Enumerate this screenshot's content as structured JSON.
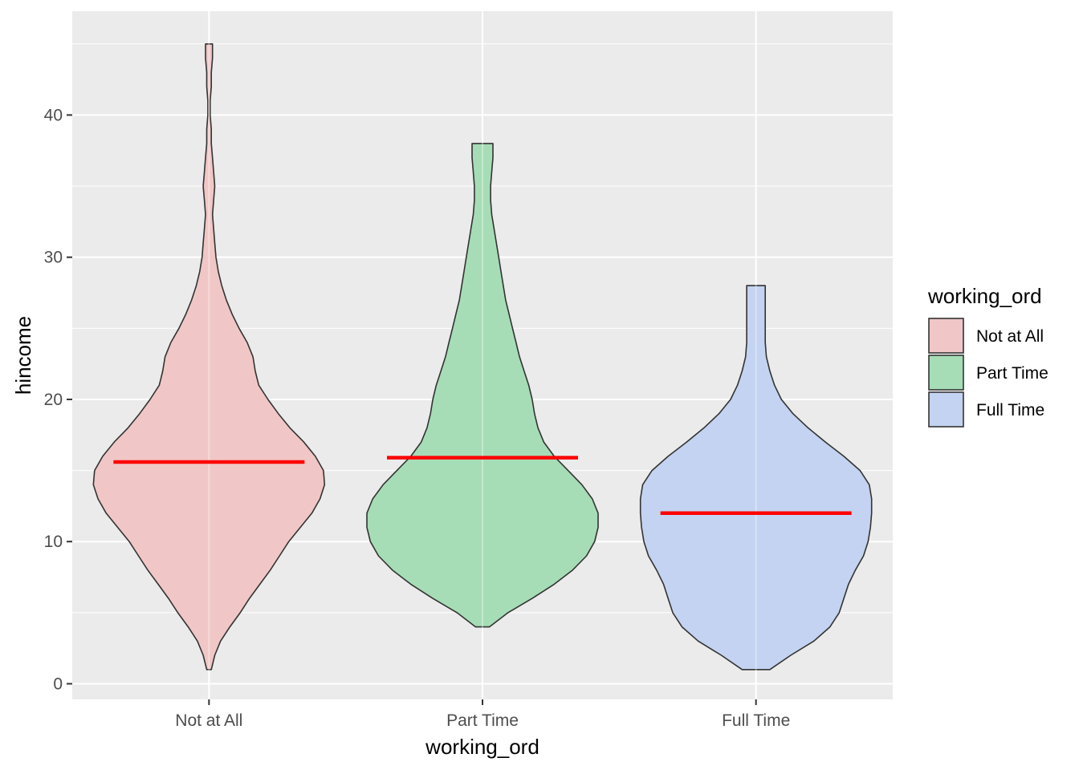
{
  "chart_data": {
    "type": "violin",
    "xlabel": "working_ord",
    "ylabel": "hincome",
    "categories": [
      "Not at All",
      "Part Time",
      "Full Time"
    ],
    "ylim": [
      -1.1,
      47.3
    ],
    "yticks": [
      0,
      10,
      20,
      30,
      40
    ],
    "grid": true,
    "legend": {
      "title": "working_ord",
      "position": "right",
      "entries": [
        "Not at All",
        "Part Time",
        "Full Time"
      ]
    },
    "colors": {
      "panel_background": "#ebebeb",
      "grid": "#ffffff",
      "outline": "#333333",
      "mean_line": "#ff0000",
      "fills": [
        "#f0c7c6",
        "#a6ddb6",
        "#c3d3f1"
      ]
    },
    "mean_line_values": [
      15.6,
      15.9,
      12.0
    ],
    "series": [
      {
        "name": "Not at All",
        "y_min": 1,
        "y_max": 45,
        "density_profile": [
          [
            1,
            0.02
          ],
          [
            2,
            0.05
          ],
          [
            3,
            0.1
          ],
          [
            4,
            0.18
          ],
          [
            5,
            0.27
          ],
          [
            6,
            0.35
          ],
          [
            7,
            0.44
          ],
          [
            8,
            0.53
          ],
          [
            9,
            0.61
          ],
          [
            10,
            0.69
          ],
          [
            11,
            0.79
          ],
          [
            12,
            0.89
          ],
          [
            13,
            0.96
          ],
          [
            14,
            1.0
          ],
          [
            15,
            0.99
          ],
          [
            16,
            0.92
          ],
          [
            17,
            0.82
          ],
          [
            18,
            0.7
          ],
          [
            19,
            0.6
          ],
          [
            20,
            0.51
          ],
          [
            21,
            0.43
          ],
          [
            22,
            0.4
          ],
          [
            23,
            0.38
          ],
          [
            24,
            0.33
          ],
          [
            25,
            0.26
          ],
          [
            26,
            0.2
          ],
          [
            27,
            0.15
          ],
          [
            28,
            0.11
          ],
          [
            29,
            0.08
          ],
          [
            30,
            0.06
          ],
          [
            31,
            0.05
          ],
          [
            32,
            0.04
          ],
          [
            33,
            0.03
          ],
          [
            34,
            0.04
          ],
          [
            35,
            0.05
          ],
          [
            36,
            0.04
          ],
          [
            37,
            0.03
          ],
          [
            38,
            0.02
          ],
          [
            39,
            0.02
          ],
          [
            40,
            0.01
          ],
          [
            41,
            0.01
          ],
          [
            42,
            0.02
          ],
          [
            43,
            0.02
          ],
          [
            44,
            0.03
          ],
          [
            45,
            0.03
          ]
        ]
      },
      {
        "name": "Part Time",
        "y_min": 4,
        "y_max": 38,
        "density_profile": [
          [
            4,
            0.06
          ],
          [
            5,
            0.22
          ],
          [
            6,
            0.43
          ],
          [
            7,
            0.62
          ],
          [
            8,
            0.78
          ],
          [
            9,
            0.9
          ],
          [
            10,
            0.97
          ],
          [
            11,
            1.0
          ],
          [
            12,
            1.0
          ],
          [
            13,
            0.95
          ],
          [
            14,
            0.86
          ],
          [
            15,
            0.74
          ],
          [
            16,
            0.62
          ],
          [
            17,
            0.53
          ],
          [
            18,
            0.48
          ],
          [
            19,
            0.45
          ],
          [
            20,
            0.43
          ],
          [
            21,
            0.4
          ],
          [
            22,
            0.36
          ],
          [
            23,
            0.32
          ],
          [
            24,
            0.29
          ],
          [
            25,
            0.26
          ],
          [
            26,
            0.23
          ],
          [
            27,
            0.2
          ],
          [
            28,
            0.18
          ],
          [
            29,
            0.16
          ],
          [
            30,
            0.14
          ],
          [
            31,
            0.12
          ],
          [
            32,
            0.1
          ],
          [
            33,
            0.08
          ],
          [
            34,
            0.07
          ],
          [
            35,
            0.07
          ],
          [
            36,
            0.08
          ],
          [
            37,
            0.09
          ],
          [
            38,
            0.09
          ]
        ]
      },
      {
        "name": "Full Time",
        "y_min": 1,
        "y_max": 28,
        "density_profile": [
          [
            1,
            0.12
          ],
          [
            2,
            0.3
          ],
          [
            3,
            0.5
          ],
          [
            4,
            0.64
          ],
          [
            5,
            0.72
          ],
          [
            6,
            0.76
          ],
          [
            7,
            0.8
          ],
          [
            8,
            0.86
          ],
          [
            9,
            0.93
          ],
          [
            10,
            0.97
          ],
          [
            11,
            0.99
          ],
          [
            12,
            1.0
          ],
          [
            13,
            1.0
          ],
          [
            14,
            0.98
          ],
          [
            15,
            0.9
          ],
          [
            16,
            0.76
          ],
          [
            17,
            0.6
          ],
          [
            18,
            0.45
          ],
          [
            19,
            0.32
          ],
          [
            20,
            0.22
          ],
          [
            21,
            0.16
          ],
          [
            22,
            0.12
          ],
          [
            23,
            0.09
          ],
          [
            24,
            0.08
          ],
          [
            25,
            0.08
          ],
          [
            26,
            0.08
          ],
          [
            27,
            0.08
          ],
          [
            28,
            0.08
          ]
        ]
      }
    ]
  }
}
